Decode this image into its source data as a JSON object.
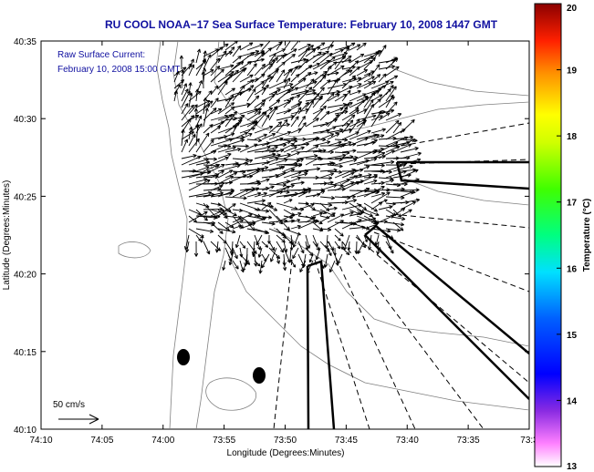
{
  "title": "RU COOL  NOAA−17  Sea Surface Temperature:  February 10, 2008 1447 GMT",
  "overlay": {
    "line1": "Raw Surface Current:",
    "line2": "February 10, 2008 15:00 GMT"
  },
  "scale_label": "50 cm/s",
  "axes": {
    "xlabel": "Longitude (Degrees:Minutes)",
    "ylabel": "Latitude (Degrees:Minutes)",
    "xticks": [
      "74:10",
      "74:05",
      "74:00",
      "73:55",
      "73:50",
      "73:45",
      "73:40",
      "73:35",
      "73:3"
    ],
    "yticks": [
      "40:35",
      "40:30",
      "40:25",
      "40:20",
      "40:15",
      "40:10"
    ]
  },
  "colorbar": {
    "label": "Temperature (°C)",
    "ticks": [
      "20",
      "19",
      "18",
      "17",
      "16",
      "15",
      "14",
      "13"
    ],
    "min": 13,
    "max": 20
  },
  "colors": {
    "title": "#1010a0",
    "overlay_text": "#1010a0",
    "contours": "#808080",
    "vectors": "#000000"
  }
}
